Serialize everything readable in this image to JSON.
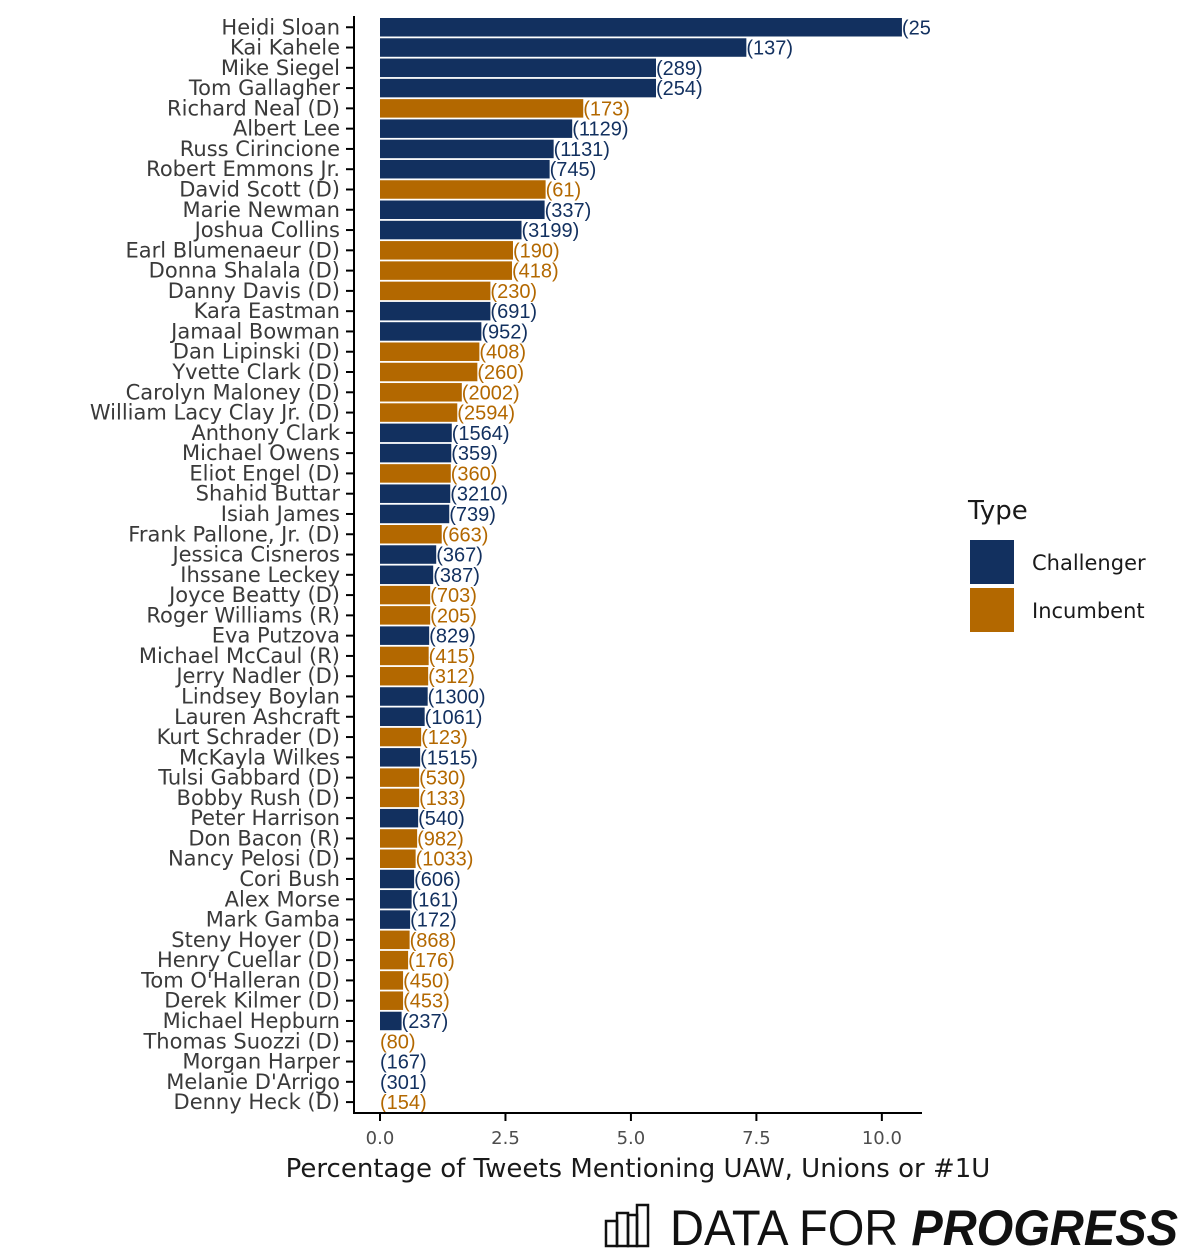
{
  "chart_data": {
    "type": "bar",
    "orientation": "horizontal",
    "title": "",
    "xlabel": "Percentage of Tweets Mentioning UAW, Unions or #1U",
    "ylabel": "",
    "xlim": [
      0,
      10.8
    ],
    "xticks": [
      0,
      2.5,
      5,
      7.5,
      10
    ],
    "xtick_labels": [
      "0.0",
      "2.5",
      "5.0",
      "7.5",
      "10.0"
    ],
    "categories": [
      "Heidi Sloan",
      "Kai Kahele",
      "Mike Siegel",
      "Tom Gallagher",
      "Richard Neal (D)",
      "Albert Lee",
      "Russ Cirincione",
      "Robert Emmons Jr.",
      "David Scott (D)",
      "Marie Newman",
      "Joshua Collins",
      "Earl Blumenaeur (D)",
      "Donna Shalala (D)",
      "Danny Davis (D)",
      "Kara Eastman",
      "Jamaal Bowman",
      "Dan Lipinski (D)",
      "Yvette Clark (D)",
      "Carolyn Maloney (D)",
      "William Lacy Clay Jr. (D)",
      "Anthony Clark",
      "Michael Owens",
      "Eliot Engel (D)",
      "Shahid Buttar",
      "Isiah James",
      "Frank Pallone, Jr. (D)",
      "Jessica Cisneros",
      "Ihssane Leckey",
      "Joyce Beatty (D)",
      "Roger Williams (R)",
      "Eva Putzova",
      "Michael McCaul (R)",
      "Jerry Nadler (D)",
      "Lindsey Boylan",
      "Lauren Ashcraft",
      "Kurt Schrader (D)",
      "McKayla Wilkes",
      "Tulsi Gabbard (D)",
      "Bobby Rush (D)",
      "Peter Harrison",
      "Don Bacon (R)",
      "Nancy Pelosi (D)",
      "Cori Bush",
      "Alex Morse",
      "Mark Gamba",
      "Steny Hoyer (D)",
      "Henry Cuellar (D)",
      "Tom O'Halleran (D)",
      "Derek Kilmer (D)",
      "Michael Hepburn",
      "Thomas Suozzi (D)",
      "Morgan Harper",
      "Melanie D'Arrigo",
      "Denny Heck (D)"
    ],
    "values": [
      10.4,
      7.3,
      5.5,
      5.5,
      4.05,
      3.83,
      3.46,
      3.38,
      3.3,
      3.28,
      2.82,
      2.65,
      2.63,
      2.2,
      2.2,
      2.02,
      1.98,
      1.94,
      1.63,
      1.54,
      1.43,
      1.42,
      1.41,
      1.4,
      1.38,
      1.23,
      1.12,
      1.06,
      1.0,
      1.0,
      0.98,
      0.97,
      0.96,
      0.95,
      0.89,
      0.82,
      0.8,
      0.78,
      0.78,
      0.76,
      0.74,
      0.71,
      0.68,
      0.63,
      0.6,
      0.59,
      0.56,
      0.46,
      0.46,
      0.43,
      0.0,
      0.0,
      0.0,
      0.0
    ],
    "counts": [
      "(25",
      "(137)",
      "(289)",
      "(254)",
      "(173)",
      "(1129)",
      "(1131)",
      "(745)",
      "(61)",
      "(337)",
      "(3199)",
      "(190)",
      "(418)",
      "(230)",
      "(691)",
      "(952)",
      "(408)",
      "(260)",
      "(2002)",
      "(2594)",
      "(1564)",
      "(359)",
      "(360)",
      "(3210)",
      "(739)",
      "(663)",
      "(367)",
      "(387)",
      "(703)",
      "(205)",
      "(829)",
      "(415)",
      "(312)",
      "(1300)",
      "(1061)",
      "(123)",
      "(1515)",
      "(530)",
      "(133)",
      "(540)",
      "(982)",
      "(1033)",
      "(606)",
      "(161)",
      "(172)",
      "(868)",
      "(176)",
      "(450)",
      "(453)",
      "(237)",
      "(80)",
      "(167)",
      "(301)",
      "(154)"
    ],
    "types": [
      "Challenger",
      "Challenger",
      "Challenger",
      "Challenger",
      "Incumbent",
      "Challenger",
      "Challenger",
      "Challenger",
      "Incumbent",
      "Challenger",
      "Challenger",
      "Incumbent",
      "Incumbent",
      "Incumbent",
      "Challenger",
      "Challenger",
      "Incumbent",
      "Incumbent",
      "Incumbent",
      "Incumbent",
      "Challenger",
      "Challenger",
      "Incumbent",
      "Challenger",
      "Challenger",
      "Incumbent",
      "Challenger",
      "Challenger",
      "Incumbent",
      "Incumbent",
      "Challenger",
      "Incumbent",
      "Incumbent",
      "Challenger",
      "Challenger",
      "Incumbent",
      "Challenger",
      "Incumbent",
      "Incumbent",
      "Challenger",
      "Incumbent",
      "Incumbent",
      "Challenger",
      "Challenger",
      "Challenger",
      "Incumbent",
      "Incumbent",
      "Incumbent",
      "Incumbent",
      "Challenger",
      "Incumbent",
      "Challenger",
      "Challenger",
      "Incumbent"
    ],
    "colors": {
      "Challenger": "#12305f",
      "Incumbent": "#b36800"
    },
    "legend": {
      "title": "Type",
      "placement": "right",
      "entries": [
        "Challenger",
        "Incumbent"
      ]
    },
    "grid": false
  },
  "branding": {
    "logo_word1": "DATA FOR ",
    "logo_word2": "PROGRESS"
  }
}
